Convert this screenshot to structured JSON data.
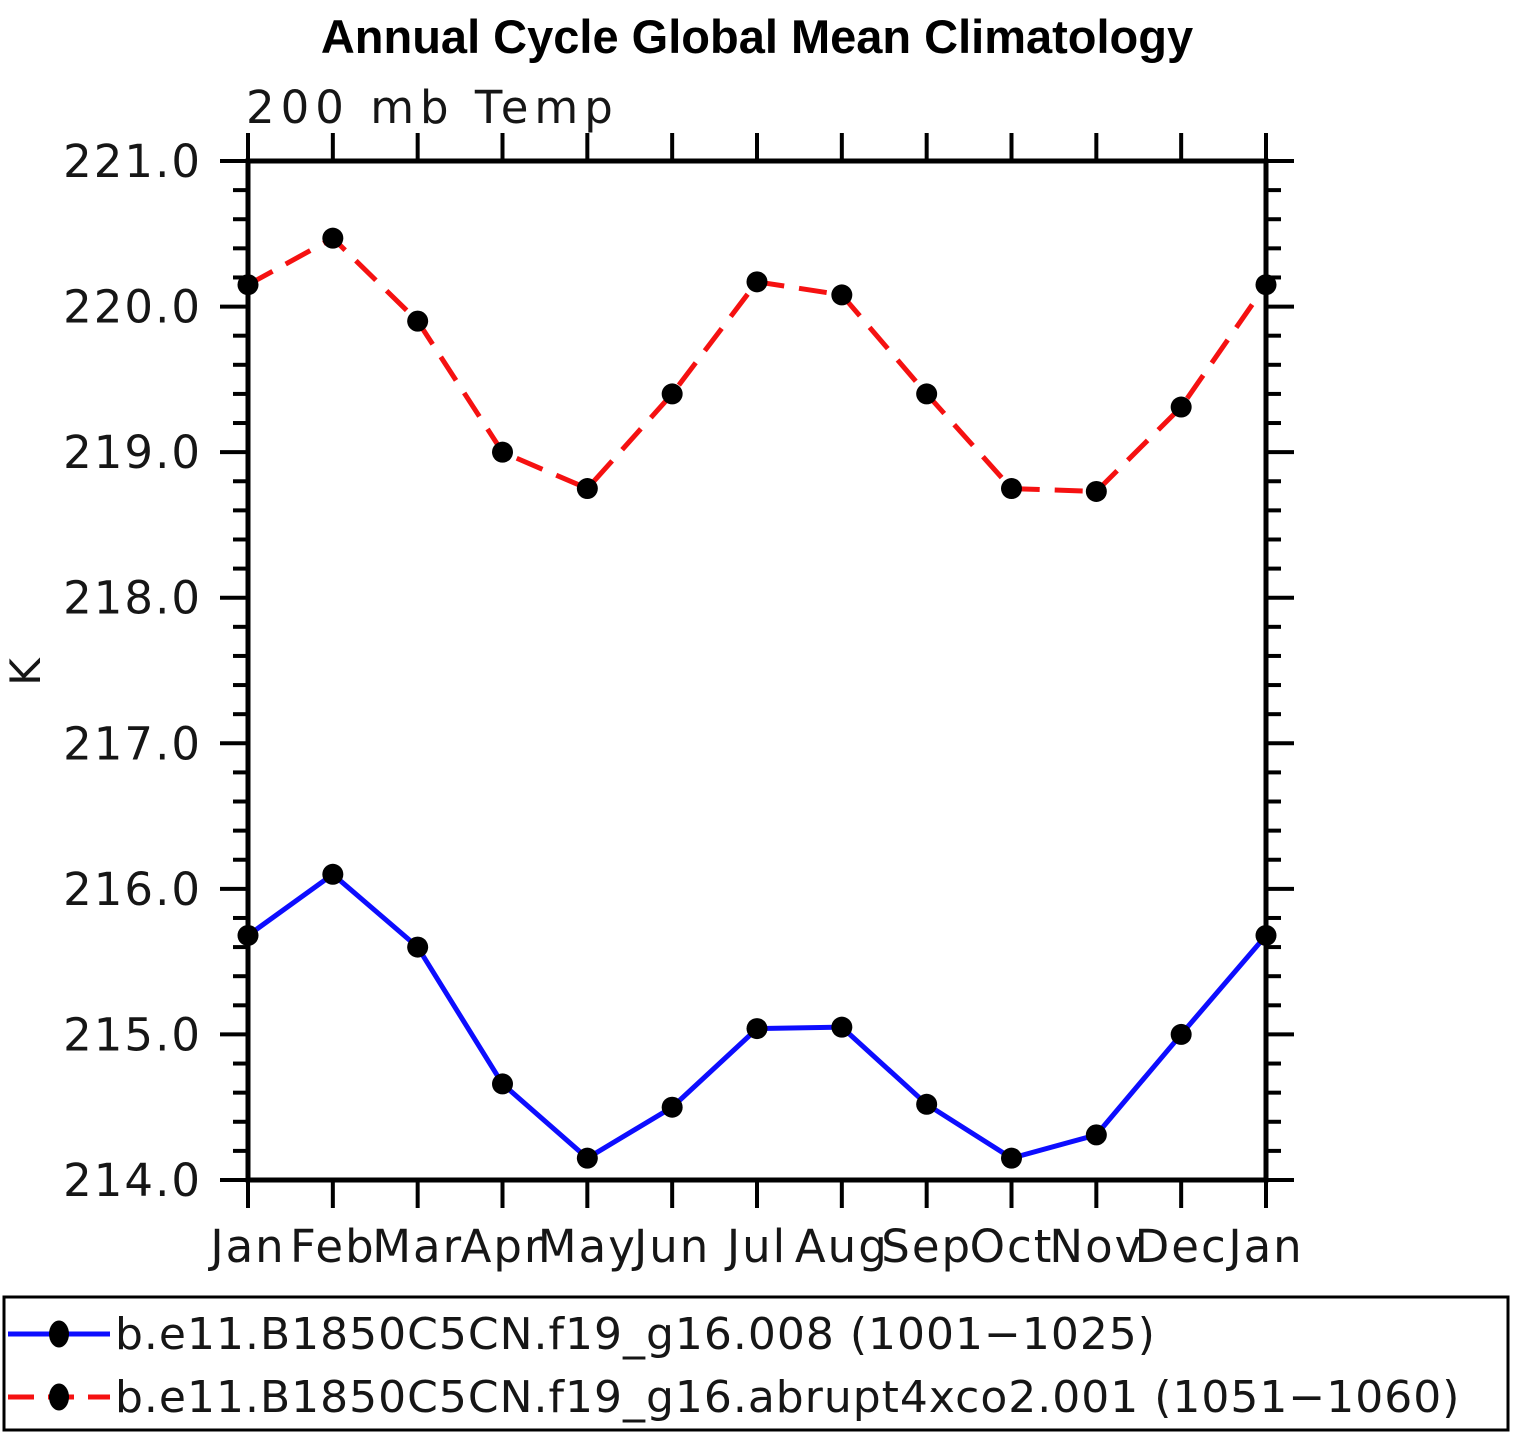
{
  "header": {
    "title": "Annual Cycle Global Mean Climatology",
    "subtitle": "200 mb Temp"
  },
  "chart_data": {
    "type": "line",
    "title": "Annual Cycle Global Mean Climatology",
    "subtitle": "200 mb Temp",
    "xlabel": "",
    "ylabel": "K",
    "categories": [
      "Jan",
      "Feb",
      "Mar",
      "Apr",
      "May",
      "Jun",
      "Jul",
      "Aug",
      "Sep",
      "Oct",
      "Nov",
      "Dec",
      "Jan"
    ],
    "ylim": [
      214.0,
      221.0
    ],
    "ytick_step": 1.0,
    "ytick_minor_step": 0.2,
    "ytick_labels": [
      "214.0",
      "215.0",
      "216.0",
      "217.0",
      "218.0",
      "219.0",
      "220.0",
      "221.0"
    ],
    "grid": "off",
    "legend_position": "bottom",
    "series": [
      {
        "name": "b.e11.B1850C5CN.f19_g16.008 (1001−1025)",
        "color": "#0d0dff",
        "style": "solid",
        "marker": "filled-circle",
        "marker_color": "#000000",
        "values": [
          215.68,
          216.1,
          215.6,
          214.66,
          214.15,
          214.5,
          215.04,
          215.05,
          214.52,
          214.15,
          214.31,
          215.0,
          215.68
        ]
      },
      {
        "name": "b.e11.B1850C5CN.f19_g16.abrupt4xco2.001 (1051−1060)",
        "color": "#f51111",
        "style": "dashed",
        "marker": "filled-circle",
        "marker_color": "#000000",
        "values": [
          220.15,
          220.47,
          219.9,
          219.0,
          218.75,
          219.4,
          220.17,
          220.08,
          219.4,
          218.75,
          218.73,
          219.31,
          220.15
        ]
      }
    ]
  },
  "colors": {
    "axis": "#000000",
    "series_control": "#0d0dff",
    "series_4xco2": "#f51111",
    "marker": "#000000"
  }
}
